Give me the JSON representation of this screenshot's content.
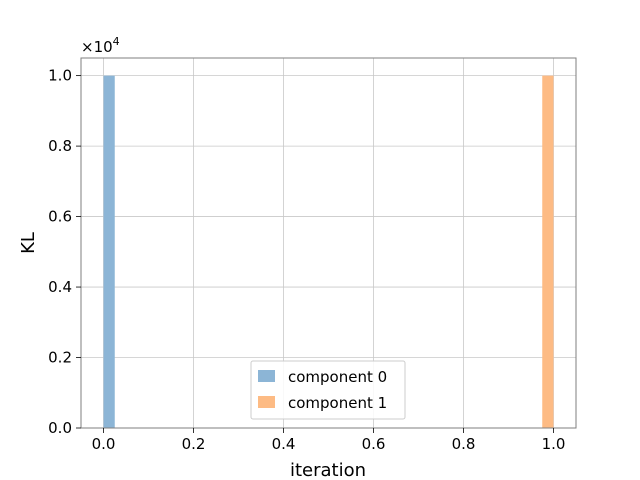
{
  "chart_data": {
    "type": "bar",
    "title": "",
    "xlabel": "iteration",
    "ylabel": "KL",
    "y_scale_exponent": "4",
    "xlim": [
      -0.05,
      1.05
    ],
    "ylim": [
      0,
      1.05
    ],
    "x_ticks": [
      0.0,
      0.2,
      0.4,
      0.6,
      0.8,
      1.0
    ],
    "x_tick_labels": [
      "0.0",
      "0.2",
      "0.4",
      "0.6",
      "0.8",
      "1.0"
    ],
    "y_ticks": [
      0.0,
      0.2,
      0.4,
      0.6,
      0.8,
      1.0
    ],
    "y_tick_labels": [
      "0.0",
      "0.2",
      "0.4",
      "0.6",
      "0.8",
      "1.0"
    ],
    "grid": true,
    "legend_position": "lower center",
    "series": [
      {
        "name": "component 0",
        "color": "#8cb5d6",
        "x_start": 0.0,
        "x_end": 0.025,
        "value": 1.0
      },
      {
        "name": "component 1",
        "color": "#fdbb84",
        "x_start": 0.975,
        "x_end": 1.0,
        "value": 1.0
      }
    ]
  }
}
